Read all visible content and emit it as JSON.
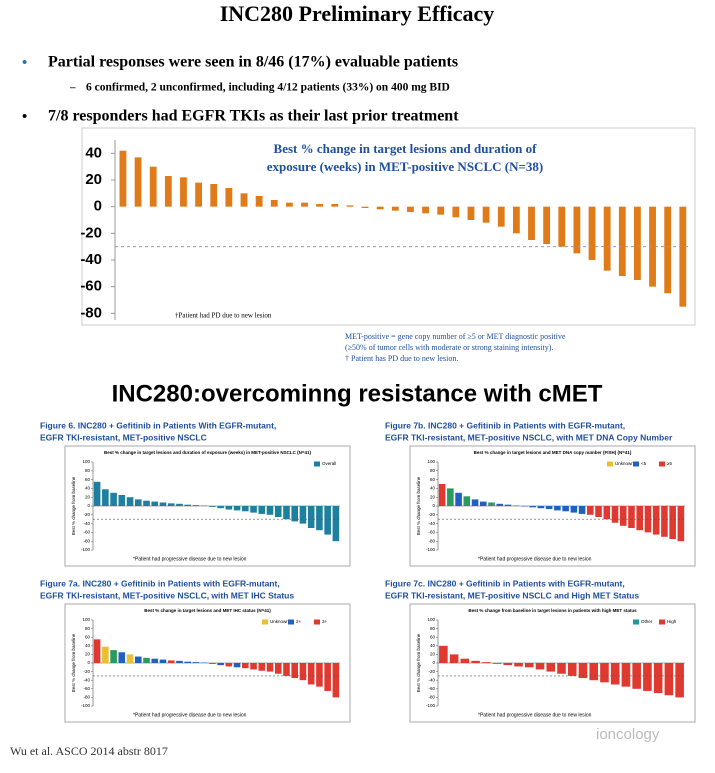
{
  "header": {
    "title": "INC280 Preliminary Efficacy"
  },
  "bullets": [
    {
      "text": "Partial responses were seen in 8/46 (17%) evaluable patients",
      "sub": "6 confirmed, 2 unconfirmed, including 4/12 patients (33%) on 400 mg BID"
    },
    {
      "text": "7/8 responders had EGFR TKIs as their last prior treatment"
    }
  ],
  "chart_data": [
    {
      "type": "bar",
      "title_lines": [
        "Best % change in target lesions and duration of",
        "exposure (weeks) in MET-positive NSCLC (N=38)"
      ],
      "values": [
        42,
        37,
        30,
        23,
        22,
        18,
        17,
        14,
        10,
        8,
        5,
        3,
        3,
        2,
        2,
        1,
        -1,
        -2,
        -3,
        -4,
        -5,
        -6,
        -8,
        -10,
        -12,
        -15,
        -20,
        -25,
        -28,
        -30,
        -35,
        -40,
        -48,
        -52,
        -55,
        -60,
        -65,
        -75
      ],
      "color": "#e07b1a",
      "ylim": [
        -85,
        50
      ],
      "yticks": [
        40,
        20,
        0,
        -20,
        -40,
        -60,
        -80
      ],
      "reference_line": -30,
      "annotation": "†Patient had PD due to new lesion",
      "footnotes": [
        "MET-positive = gene copy number of ≥5 or MET diagnostic positive",
        "(≥50% of tumor cells with moderate or strong staining intensity).",
        "† Patient has PD due to new lesion."
      ]
    },
    {
      "type": "bar",
      "caption": [
        "Figure 6. INC280 + Gefitinib in Patients With EGFR-mutant,",
        "EGFR TKI-resistant, MET-positive NSCLC"
      ],
      "title": "Best % change in target lesions and duration of exposure (weeks) in MET-positive NSCLC (N=41)",
      "footnote": "*Patient had progressive disease due to new lesion",
      "ylabel": "Best % change from baseline",
      "legend": [
        {
          "name": "Overall",
          "color": "#1f7fa0"
        }
      ],
      "values": [
        55,
        38,
        30,
        25,
        20,
        15,
        12,
        10,
        8,
        6,
        5,
        3,
        2,
        1,
        -2,
        -5,
        -8,
        -10,
        -12,
        -15,
        -18,
        -20,
        -25,
        -30,
        -35,
        -40,
        -50,
        -55,
        -65,
        -80
      ],
      "colors": [
        "#1f7fa0",
        "#1f7fa0",
        "#1f7fa0",
        "#1f7fa0",
        "#1f7fa0",
        "#1f7fa0",
        "#1f7fa0",
        "#1f7fa0",
        "#1f7fa0",
        "#1f7fa0",
        "#1f7fa0",
        "#1f7fa0",
        "#1f7fa0",
        "#1f7fa0",
        "#1f7fa0",
        "#1f7fa0",
        "#1f7fa0",
        "#1f7fa0",
        "#1f7fa0",
        "#1f7fa0",
        "#1f7fa0",
        "#1f7fa0",
        "#1f7fa0",
        "#1f7fa0",
        "#1f7fa0",
        "#1f7fa0",
        "#1f7fa0",
        "#1f7fa0",
        "#1f7fa0",
        "#1f7fa0"
      ],
      "ylim": [
        -100,
        100
      ],
      "yticks": [
        100,
        80,
        60,
        40,
        20,
        0,
        -20,
        -40,
        -60,
        -80,
        -100
      ],
      "reference_line": -30
    },
    {
      "type": "bar",
      "caption": [
        "Figure 7b. INC280 + Gefitinib in Patients with EGFR-mutant,",
        "EGFR TKI-resistant, MET-positive NSCLC, with MET DNA Copy Number"
      ],
      "title": "Best % change in target lesions and MET DNA copy number (FISH) (N=41)",
      "footnote": "*Patient had progressive disease due to new lesion",
      "ylabel": "Best % change from baseline",
      "legend": [
        {
          "name": "Unknown",
          "color": "#e8c030"
        },
        {
          "name": "<5",
          "color": "#2060c0"
        },
        {
          "name": "≥5",
          "color": "#e03a30"
        }
      ],
      "values": [
        50,
        40,
        30,
        22,
        15,
        10,
        8,
        5,
        3,
        1,
        -1,
        -3,
        -5,
        -7,
        -10,
        -12,
        -15,
        -18,
        -20,
        -25,
        -30,
        -38,
        -45,
        -50,
        -55,
        -60,
        -65,
        -70,
        -75,
        -80
      ],
      "colors": [
        "#e03a30",
        "#2a9a60",
        "#2060c0",
        "#2a9a60",
        "#2060c0",
        "#2060c0",
        "#2a9a60",
        "#2060c0",
        "#2060c0",
        "#2060c0",
        "#2060c0",
        "#2060c0",
        "#2060c0",
        "#2060c0",
        "#2060c0",
        "#2060c0",
        "#2060c0",
        "#2060c0",
        "#e03a30",
        "#e03a30",
        "#e03a30",
        "#e03a30",
        "#e03a30",
        "#e03a30",
        "#e03a30",
        "#e03a30",
        "#e03a30",
        "#e03a30",
        "#e03a30",
        "#e03a30"
      ],
      "ylim": [
        -100,
        100
      ],
      "yticks": [
        100,
        80,
        60,
        40,
        20,
        0,
        -20,
        -40,
        -60,
        -80,
        -100
      ],
      "reference_line": -30
    },
    {
      "type": "bar",
      "caption": [
        "Figure 7a. INC280 + Gefitinib in Patients with EGFR-mutant,",
        "EGFR TKI-resistant, MET-positive NSCLC, with MET IHC Status"
      ],
      "title": "Best % change in target lesions and MET IHC status (N=41)",
      "footnote": "*Patient had progressive disease due to new lesion",
      "ylabel": "Best % change from baseline",
      "legend": [
        {
          "name": "Unknown",
          "color": "#e8c030"
        },
        {
          "name": "2+",
          "color": "#2060c0"
        },
        {
          "name": "3+",
          "color": "#e03a30"
        }
      ],
      "values": [
        55,
        38,
        30,
        25,
        20,
        15,
        12,
        10,
        8,
        6,
        5,
        3,
        2,
        1,
        -2,
        -5,
        -8,
        -10,
        -12,
        -15,
        -18,
        -20,
        -25,
        -30,
        -35,
        -40,
        -50,
        -55,
        -65,
        -80
      ],
      "colors": [
        "#e03a30",
        "#e8c030",
        "#2a9a60",
        "#2060c0",
        "#e8c030",
        "#2060c0",
        "#2a9a60",
        "#2060c0",
        "#2060c0",
        "#e03a30",
        "#2060c0",
        "#2060c0",
        "#2060c0",
        "#2060c0",
        "#2060c0",
        "#2060c0",
        "#e03a30",
        "#2060c0",
        "#e03a30",
        "#e03a30",
        "#e03a30",
        "#e03a30",
        "#e03a30",
        "#e03a30",
        "#e03a30",
        "#e03a30",
        "#e03a30",
        "#e03a30",
        "#e03a30",
        "#e03a30"
      ],
      "ylim": [
        -100,
        100
      ],
      "yticks": [
        100,
        80,
        60,
        40,
        20,
        0,
        -20,
        -40,
        -60,
        -80,
        -100
      ],
      "reference_line": -30
    },
    {
      "type": "bar",
      "caption": [
        "Figure 7c. INC280 + Gefitinib in Patients with EGFR-mutant,",
        "EGFR TKI-resistant, MET-positive NSCLC and High MET Status"
      ],
      "title": "Best % change from baseline in target lesions in patients with high MET status",
      "footnote": "*Patient had progressive disease due to new lesion",
      "ylabel": "Best % change from baseline",
      "legend": [
        {
          "name": "Other",
          "color": "#1f9a9a"
        },
        {
          "name": "High",
          "color": "#e03a30"
        }
      ],
      "values": [
        40,
        20,
        10,
        5,
        2,
        -2,
        -5,
        -8,
        -10,
        -15,
        -20,
        -25,
        -30,
        -35,
        -40,
        -45,
        -50,
        -55,
        -60,
        -65,
        -70,
        -75,
        -80
      ],
      "colors": [
        "#e03a30",
        "#e03a30",
        "#e03a30",
        "#e03a30",
        "#e03a30",
        "#e03a30",
        "#e03a30",
        "#e03a30",
        "#e03a30",
        "#e03a30",
        "#e03a30",
        "#e03a30",
        "#e03a30",
        "#e03a30",
        "#e03a30",
        "#e03a30",
        "#e03a30",
        "#e03a30",
        "#e03a30",
        "#e03a30",
        "#e03a30",
        "#e03a30",
        "#e03a30"
      ],
      "ylim": [
        -100,
        100
      ],
      "yticks": [
        100,
        80,
        60,
        40,
        20,
        0,
        -20,
        -40,
        -60,
        -80,
        -100
      ],
      "reference_line": -30
    }
  ],
  "section_title": "INC280:overcominng resistance with cMET",
  "citation": "Wu et al.  ASCO 2014 abstr 8017",
  "watermark": "ioncology"
}
